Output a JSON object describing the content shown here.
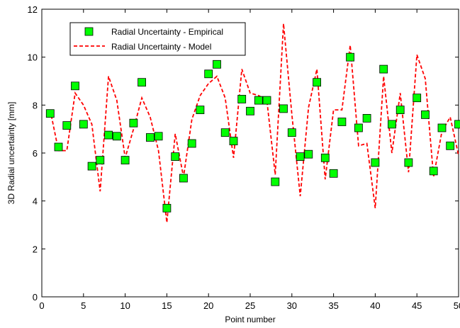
{
  "chart_data": {
    "type": "line",
    "xlabel": "Point number",
    "ylabel": "3D Radial uncertainty [mm]",
    "xlim": [
      0,
      50
    ],
    "ylim": [
      0,
      12
    ],
    "xticks": [
      "0",
      "5",
      "10",
      "15",
      "20",
      "25",
      "30",
      "35",
      "40",
      "45",
      "50"
    ],
    "yticks": [
      "0",
      "2",
      "4",
      "6",
      "8",
      "10",
      "12"
    ],
    "grid": false,
    "legend_position": "top-left",
    "series": [
      {
        "name": "Radial Uncertainty - Empirical",
        "style": "square-markers",
        "color": "#00ff00",
        "x": [
          1,
          2,
          3,
          4,
          5,
          6,
          7,
          8,
          9,
          10,
          11,
          12,
          13,
          14,
          15,
          16,
          17,
          18,
          19,
          20,
          21,
          22,
          23,
          24,
          25,
          26,
          27,
          28,
          29,
          30,
          31,
          32,
          33,
          34,
          35,
          36,
          37,
          38,
          39,
          40,
          41,
          42,
          43,
          44,
          45,
          46,
          47,
          48,
          49,
          50
        ],
        "values": [
          7.65,
          6.25,
          7.15,
          8.8,
          7.2,
          5.45,
          5.7,
          6.75,
          6.7,
          5.7,
          7.25,
          8.95,
          6.65,
          6.7,
          3.7,
          5.85,
          4.95,
          6.4,
          7.8,
          9.3,
          9.7,
          6.85,
          6.5,
          8.25,
          7.75,
          8.2,
          8.2,
          4.8,
          7.85,
          6.85,
          5.85,
          5.95,
          8.95,
          5.8,
          5.15,
          7.3,
          10.0,
          7.05,
          7.45,
          5.6,
          9.5,
          7.2,
          7.8,
          5.6,
          8.3,
          7.6,
          5.25,
          7.05,
          6.3,
          7.2
        ]
      },
      {
        "name": "Radial Uncertainty - Model",
        "style": "dashed-line",
        "color": "#ff0000",
        "x": [
          1,
          2,
          3,
          4,
          5,
          6,
          7,
          8,
          9,
          10,
          11,
          12,
          13,
          14,
          15,
          16,
          17,
          18,
          19,
          20,
          21,
          22,
          23,
          24,
          25,
          26,
          27,
          28,
          29,
          30,
          31,
          32,
          33,
          34,
          35,
          36,
          37,
          38,
          39,
          40,
          41,
          42,
          43,
          44,
          45,
          46,
          47,
          48,
          49,
          50
        ],
        "values": [
          7.8,
          6.1,
          6.1,
          8.5,
          8.0,
          7.2,
          4.4,
          9.2,
          8.2,
          5.8,
          7.0,
          8.3,
          7.5,
          6.1,
          3.1,
          6.8,
          5.0,
          7.4,
          8.4,
          8.9,
          9.2,
          8.3,
          5.8,
          9.5,
          8.5,
          8.4,
          8.2,
          5.1,
          11.4,
          7.6,
          4.2,
          7.9,
          9.5,
          4.9,
          7.8,
          7.8,
          10.5,
          6.3,
          6.4,
          3.7,
          9.2,
          6.0,
          8.5,
          5.2,
          10.1,
          9.1,
          5.0,
          6.9,
          7.5,
          5.9
        ]
      }
    ]
  }
}
